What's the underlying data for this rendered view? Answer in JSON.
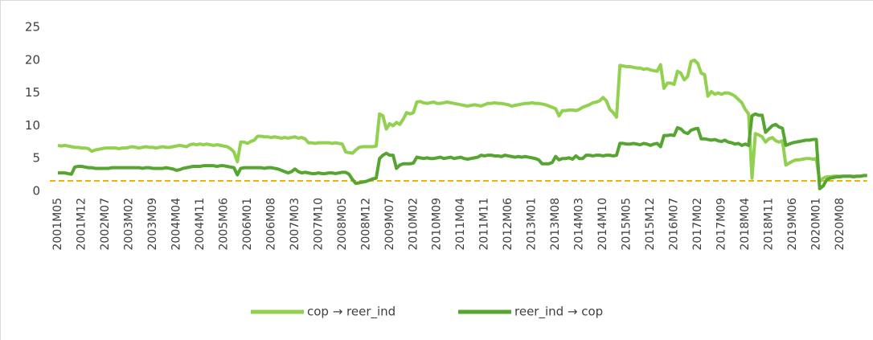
{
  "chart_data": {
    "type": "line",
    "categories": [
      "2001M05",
      null,
      null,
      null,
      null,
      null,
      null,
      "2001M12",
      null,
      null,
      null,
      null,
      null,
      null,
      "2002M07",
      null,
      null,
      null,
      null,
      null,
      null,
      "2003M02",
      null,
      null,
      null,
      null,
      null,
      null,
      "2003M09",
      null,
      null,
      null,
      null,
      null,
      null,
      "2004M04",
      null,
      null,
      null,
      null,
      null,
      null,
      "2004M11",
      null,
      null,
      null,
      null,
      null,
      null,
      "2005M06",
      null,
      null,
      null,
      null,
      null,
      null,
      "2006M01",
      null,
      null,
      null,
      null,
      null,
      null,
      "2006M08",
      null,
      null,
      null,
      null,
      null,
      null,
      "2007M03",
      null,
      null,
      null,
      null,
      null,
      null,
      "2007M10",
      null,
      null,
      null,
      null,
      null,
      null,
      "2008M05",
      null,
      null,
      null,
      null,
      null,
      null,
      "2008M12",
      null,
      null,
      null,
      null,
      null,
      null,
      "2009M07",
      null,
      null,
      null,
      null,
      null,
      null,
      "2010M02",
      null,
      null,
      null,
      null,
      null,
      null,
      "2010M09",
      null,
      null,
      null,
      null,
      null,
      null,
      "2011M04",
      null,
      null,
      null,
      null,
      null,
      null,
      "2011M11",
      null,
      null,
      null,
      null,
      null,
      null,
      "2012M06",
      null,
      null,
      null,
      null,
      null,
      null,
      "2013M01",
      null,
      null,
      null,
      null,
      null,
      null,
      "2013M08",
      null,
      null,
      null,
      null,
      null,
      null,
      "2014M03",
      null,
      null,
      null,
      null,
      null,
      null,
      "2014M10",
      null,
      null,
      null,
      null,
      null,
      null,
      "2015M05",
      null,
      null,
      null,
      null,
      null,
      null,
      "2015M12",
      null,
      null,
      null,
      null,
      null,
      null,
      "2016M07",
      null,
      null,
      null,
      null,
      null,
      null,
      "2017M02",
      null,
      null,
      null,
      null,
      null,
      null,
      "2017M09",
      null,
      null,
      null,
      null,
      null,
      null,
      "2018M04",
      null,
      null,
      null,
      null,
      null,
      null,
      "2018M11",
      null,
      null,
      null,
      null,
      null,
      null,
      "2019M06",
      null,
      null,
      null,
      null,
      null,
      null,
      "2020M01",
      null,
      null,
      null,
      null,
      null,
      null,
      "2020M08",
      null,
      null,
      null,
      null,
      null,
      null,
      null,
      null
    ],
    "series": [
      {
        "name": "cop → reer_ind",
        "color": "#92d050",
        "values": [
          7.0,
          6.9,
          7.0,
          6.9,
          6.8,
          6.7,
          6.7,
          6.6,
          6.6,
          6.5,
          6.1,
          6.3,
          6.4,
          6.5,
          6.6,
          6.6,
          6.6,
          6.6,
          6.5,
          6.6,
          6.6,
          6.7,
          6.8,
          6.7,
          6.6,
          6.7,
          6.8,
          6.7,
          6.7,
          6.6,
          6.7,
          6.8,
          6.7,
          6.7,
          6.8,
          6.9,
          7.0,
          6.9,
          6.8,
          7.1,
          7.2,
          7.1,
          7.2,
          7.1,
          7.2,
          7.1,
          7.0,
          7.1,
          7.0,
          6.9,
          6.8,
          6.5,
          6.0,
          4.5,
          7.5,
          7.5,
          7.3,
          7.6,
          7.8,
          8.4,
          8.4,
          8.3,
          8.3,
          8.2,
          8.3,
          8.2,
          8.1,
          8.2,
          8.1,
          8.2,
          8.3,
          8.1,
          8.2,
          8.0,
          7.4,
          7.4,
          7.3,
          7.4,
          7.4,
          7.4,
          7.4,
          7.3,
          7.4,
          7.3,
          7.2,
          6.0,
          5.9,
          5.8,
          6.3,
          6.7,
          6.8,
          6.8,
          6.8,
          6.8,
          6.9,
          11.8,
          11.5,
          9.5,
          10.3,
          10.0,
          10.5,
          10.2,
          11.0,
          12.0,
          11.8,
          12.0,
          13.6,
          13.7,
          13.5,
          13.4,
          13.5,
          13.6,
          13.4,
          13.4,
          13.5,
          13.6,
          13.5,
          13.4,
          13.3,
          13.2,
          13.1,
          13.0,
          13.1,
          13.2,
          13.1,
          13.0,
          13.2,
          13.4,
          13.4,
          13.5,
          13.4,
          13.4,
          13.3,
          13.2,
          13.0,
          13.1,
          13.2,
          13.3,
          13.4,
          13.4,
          13.5,
          13.4,
          13.4,
          13.3,
          13.2,
          13.0,
          12.8,
          12.6,
          11.5,
          12.3,
          12.3,
          12.4,
          12.4,
          12.3,
          12.5,
          12.8,
          13.0,
          13.2,
          13.5,
          13.6,
          13.8,
          14.3,
          13.8,
          12.5,
          12.0,
          11.3,
          19.2,
          19.1,
          19.0,
          19.0,
          18.9,
          18.8,
          18.8,
          18.6,
          18.7,
          18.5,
          18.4,
          18.3,
          19.3,
          15.7,
          16.5,
          16.5,
          16.3,
          18.3,
          18.0,
          17.0,
          17.5,
          19.8,
          20.0,
          19.5,
          18.0,
          17.8,
          14.5,
          15.2,
          14.8,
          15.0,
          14.8,
          15.0,
          15.0,
          14.8,
          14.5,
          14.0,
          13.5,
          12.5,
          11.8,
          2.0,
          8.8,
          8.6,
          8.3,
          7.5,
          8.0,
          8.2,
          7.7,
          7.5,
          7.7,
          4.0,
          4.3,
          4.6,
          4.8,
          4.8,
          4.9,
          5.0,
          5.0,
          4.9,
          5.0,
          1.5,
          2.0,
          2.2,
          2.2,
          2.3,
          2.3,
          2.3,
          2.3,
          2.3,
          2.3,
          2.3,
          2.3,
          2.3,
          2.4,
          2.4
        ]
      },
      {
        "name": "reer_ind → cop",
        "color": "#56a530",
        "values": [
          2.8,
          2.8,
          2.8,
          2.7,
          2.6,
          3.7,
          3.8,
          3.8,
          3.7,
          3.6,
          3.6,
          3.5,
          3.5,
          3.5,
          3.5,
          3.5,
          3.6,
          3.6,
          3.6,
          3.6,
          3.6,
          3.6,
          3.6,
          3.6,
          3.6,
          3.5,
          3.6,
          3.6,
          3.5,
          3.5,
          3.5,
          3.5,
          3.6,
          3.5,
          3.4,
          3.2,
          3.3,
          3.5,
          3.6,
          3.7,
          3.8,
          3.8,
          3.8,
          3.9,
          3.9,
          3.9,
          3.9,
          3.8,
          3.9,
          3.9,
          3.8,
          3.7,
          3.6,
          2.5,
          3.5,
          3.6,
          3.6,
          3.6,
          3.6,
          3.6,
          3.6,
          3.5,
          3.6,
          3.6,
          3.5,
          3.4,
          3.2,
          3.0,
          2.8,
          3.0,
          3.4,
          3.0,
          2.8,
          2.9,
          2.8,
          2.7,
          2.7,
          2.8,
          2.7,
          2.7,
          2.8,
          2.8,
          2.7,
          2.8,
          2.9,
          2.9,
          2.6,
          1.8,
          1.2,
          1.3,
          1.4,
          1.5,
          1.7,
          1.9,
          2.0,
          5.0,
          5.5,
          5.8,
          5.5,
          5.5,
          3.5,
          4.0,
          4.2,
          4.2,
          4.2,
          4.3,
          5.2,
          5.1,
          5.0,
          5.1,
          5.0,
          5.0,
          5.1,
          5.2,
          5.0,
          5.1,
          5.2,
          5.0,
          5.1,
          5.2,
          5.0,
          4.9,
          5.0,
          5.1,
          5.2,
          5.5,
          5.4,
          5.5,
          5.5,
          5.4,
          5.4,
          5.3,
          5.5,
          5.4,
          5.3,
          5.2,
          5.3,
          5.2,
          5.3,
          5.2,
          5.1,
          5.0,
          4.8,
          4.2,
          4.2,
          4.2,
          4.4,
          5.3,
          4.8,
          5.0,
          5.0,
          5.1,
          4.9,
          5.4,
          5.0,
          5.0,
          5.5,
          5.5,
          5.4,
          5.5,
          5.5,
          5.4,
          5.5,
          5.5,
          5.4,
          5.5,
          7.3,
          7.3,
          7.2,
          7.2,
          7.3,
          7.2,
          7.1,
          7.3,
          7.2,
          7.0,
          7.2,
          7.3,
          6.8,
          8.5,
          8.5,
          8.6,
          8.5,
          9.7,
          9.5,
          9.0,
          8.8,
          9.3,
          9.5,
          9.6,
          8.0,
          8.0,
          7.9,
          7.8,
          7.9,
          7.7,
          7.6,
          7.8,
          7.5,
          7.4,
          7.2,
          7.3,
          7.0,
          7.2,
          7.0,
          11.5,
          11.8,
          11.6,
          11.6,
          9.0,
          9.5,
          10.0,
          10.2,
          9.8,
          9.6,
          7.0,
          7.2,
          7.4,
          7.5,
          7.6,
          7.7,
          7.8,
          7.8,
          7.9,
          7.9,
          0.4,
          0.8,
          1.7,
          2.0,
          2.1,
          2.2,
          2.2,
          2.3,
          2.3,
          2.3,
          2.2,
          2.3,
          2.3,
          2.4,
          2.4
        ]
      }
    ],
    "reference_line": {
      "value": 1.6,
      "color": "#f0b400"
    },
    "ylim": [
      0,
      25
    ],
    "yticks": [
      0,
      5,
      10,
      15,
      20,
      25
    ],
    "grid": false,
    "legend": "bottom"
  }
}
